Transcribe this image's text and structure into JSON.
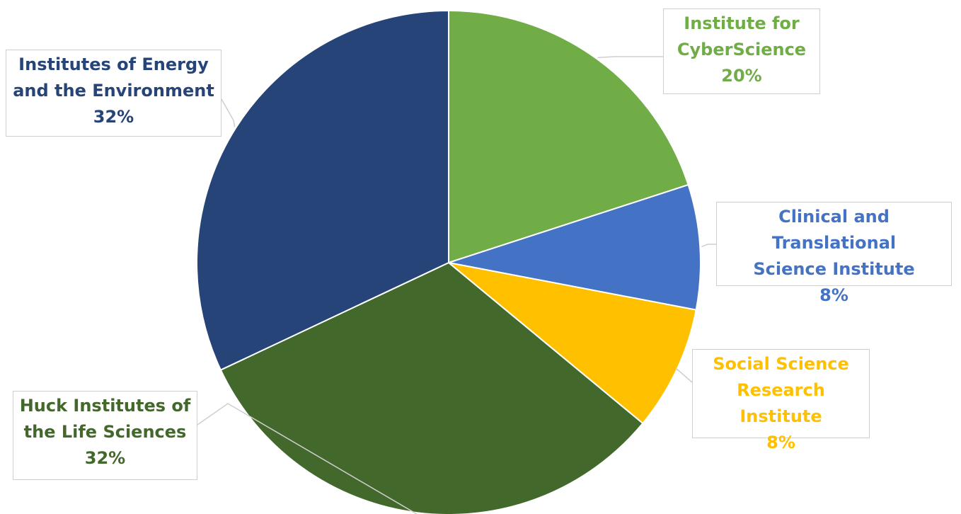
{
  "chart_data": {
    "type": "pie",
    "title": "",
    "start_angle_deg": 0,
    "direction": "clockwise",
    "slices": [
      {
        "line1": "Institute for",
        "line2": "CyberScience",
        "value": 20,
        "value_label": "20%",
        "color": "#70AD47",
        "text_color": "#70AD47"
      },
      {
        "line1": "Clinical and Translational",
        "line2": "Science Institute",
        "value": 8,
        "value_label": "8%",
        "color": "#4472C4",
        "text_color": "#4472C4"
      },
      {
        "line1": "Social Science",
        "line2": "Research Institute",
        "value": 8,
        "value_label": "8%",
        "color": "#FFC000",
        "text_color": "#FFC000"
      },
      {
        "line1": "Huck Institutes of",
        "line2": "the Life Sciences",
        "value": 32,
        "value_label": "32%",
        "color": "#43682B",
        "text_color": "#43682B"
      },
      {
        "line1": "Institutes of Energy",
        "line2": "and the Environment",
        "value": 32,
        "value_label": "32%",
        "color": "#264478",
        "text_color": "#264478"
      }
    ],
    "legend": "none",
    "data_labels": "callouts"
  }
}
